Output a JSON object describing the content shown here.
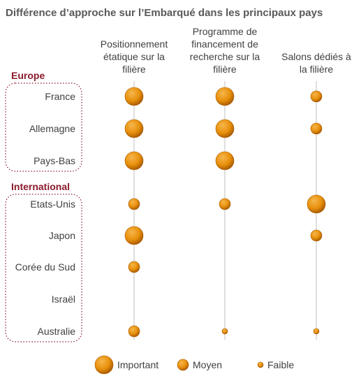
{
  "chart_data": {
    "type": "bubble-matrix",
    "title": "Différence d’approche sur l’Embarqué dans les principaux pays",
    "columns": [
      [
        "Positionnement",
        "étatique sur la",
        "filière"
      ],
      [
        "Programme de",
        "financement de",
        "recherche sur la",
        "filière"
      ],
      [
        "Salons dédiés à",
        "la filière"
      ]
    ],
    "groups": [
      {
        "name": "Europe",
        "rows": [
          0,
          1,
          2
        ]
      },
      {
        "name": "International",
        "rows": [
          3,
          4,
          5,
          6,
          7
        ]
      }
    ],
    "rows": [
      "France",
      "Allemagne",
      "Pays-Bas",
      "Etats-Unis",
      "Japon",
      "Corée du Sud",
      "Israël",
      "Australie"
    ],
    "levels": {
      "3": "Important",
      "2": "Moyen",
      "1": "Faible",
      "0": ""
    },
    "values": [
      [
        3,
        3,
        2
      ],
      [
        3,
        3,
        2
      ],
      [
        3,
        3,
        0
      ],
      [
        2,
        2,
        3
      ],
      [
        3,
        0,
        2
      ],
      [
        2,
        0,
        0
      ],
      [
        0,
        0,
        0
      ],
      [
        2,
        1,
        1
      ]
    ],
    "legend": [
      {
        "label": "Important",
        "level": 3
      },
      {
        "label": "Moyen",
        "level": 2
      },
      {
        "label": "Faible",
        "level": 1
      }
    ],
    "colors": {
      "bubble": "#e8900c",
      "bubble_dark": "#a85a00",
      "bubble_light": "#f6b64c",
      "group": "#8b1a2b",
      "gridline": "#bfbfbf"
    }
  }
}
